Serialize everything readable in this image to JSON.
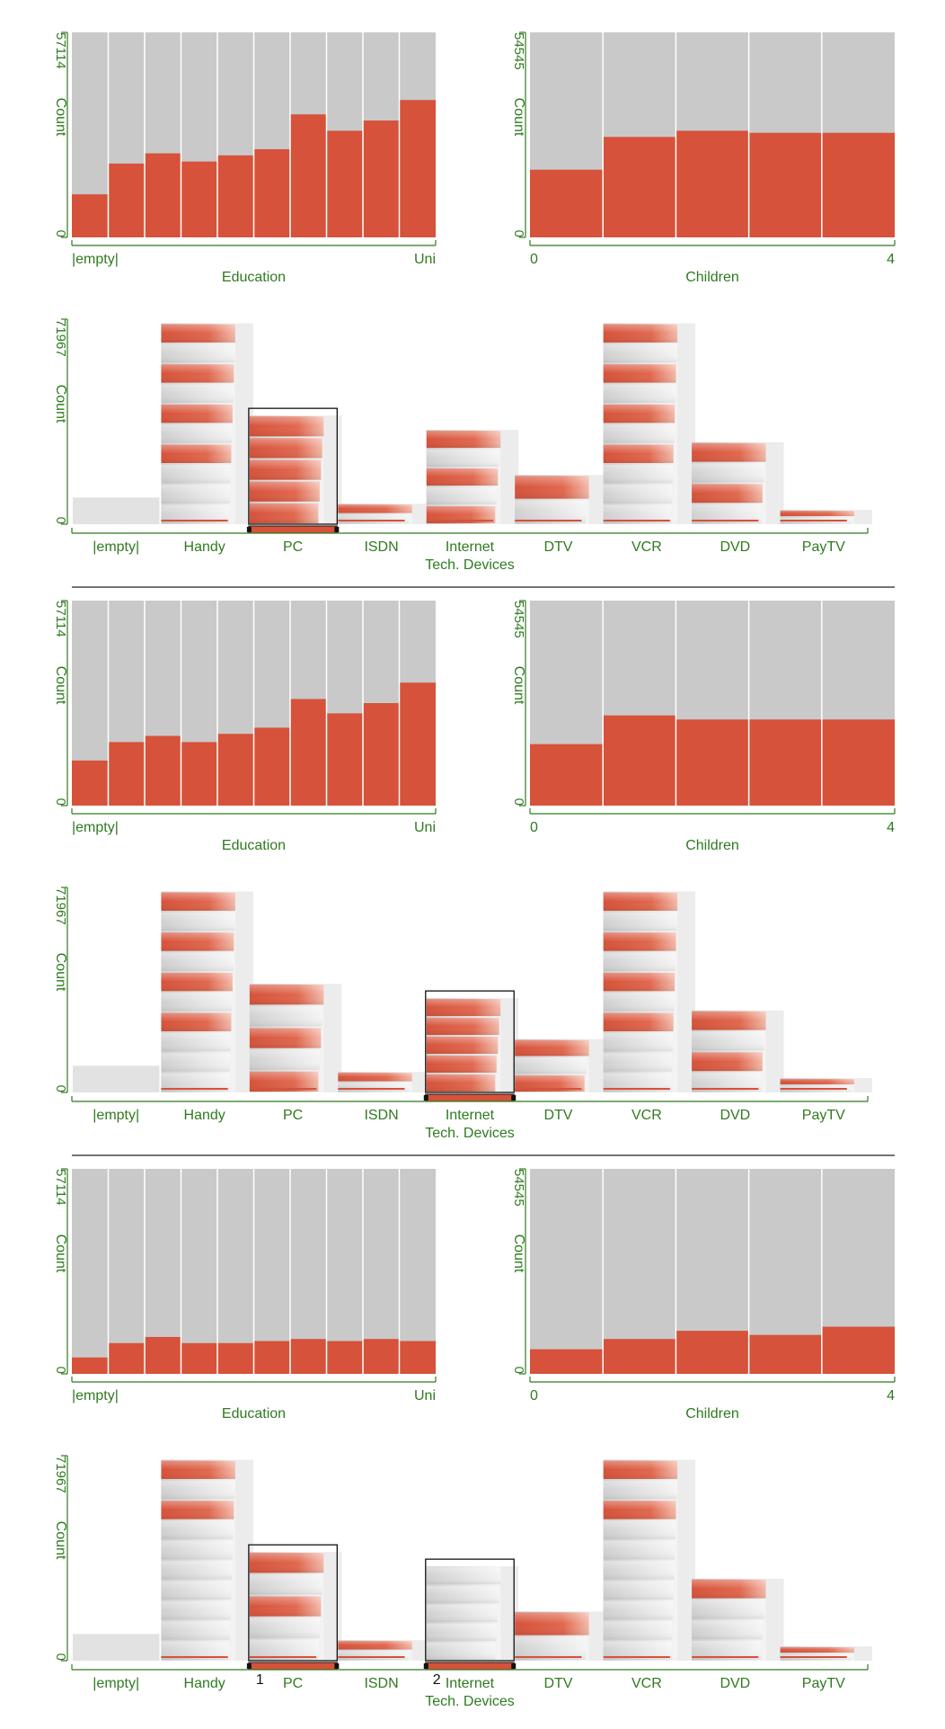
{
  "colors": {
    "selected": "#d6523a",
    "unselected": "#c9c9c9",
    "axis": "#2f7a1f",
    "divider": "#222222",
    "frame": "#111111"
  },
  "chart_data": [
    {
      "group": 1,
      "type": "bar",
      "title": "",
      "education": {
        "xlabel": "Education",
        "ylabel": "Count",
        "ymax_label": "57114",
        "y0_label": "0",
        "tick_first": "|empty|",
        "tick_last": "Uni",
        "selected_fraction": [
          0.21,
          0.36,
          0.41,
          0.37,
          0.4,
          0.43,
          0.6,
          0.52,
          0.57,
          0.67
        ]
      },
      "children": {
        "xlabel": "Children",
        "ylabel": "Count",
        "ymax_label": "54545",
        "y0_label": "0",
        "tick_first": "0",
        "tick_last": "4",
        "selected_fraction": [
          0.33,
          0.49,
          0.52,
          0.51,
          0.51
        ]
      },
      "tech": {
        "xlabel": "Tech. Devices",
        "ylabel": "Count",
        "ymax_label": "71967",
        "y0_label": "0",
        "categories": [
          "|empty|",
          "Handy",
          "PC",
          "ISDN",
          "Internet",
          "DTV",
          "VCR",
          "DVD",
          "PayTV"
        ],
        "height_fraction": [
          0.13,
          0.98,
          0.53,
          0.1,
          0.46,
          0.24,
          0.98,
          0.4,
          0.07
        ],
        "selected_share": [
          0.0,
          0.4,
          1.0,
          0.55,
          0.55,
          0.45,
          0.4,
          0.55,
          0.45
        ],
        "brushed": [
          2
        ]
      }
    },
    {
      "group": 2,
      "type": "bar",
      "title": "",
      "education": {
        "xlabel": "Education",
        "ylabel": "Count",
        "ymax_label": "57114",
        "y0_label": "0",
        "tick_first": "|empty|",
        "tick_last": "Uni",
        "selected_fraction": [
          0.22,
          0.31,
          0.34,
          0.31,
          0.35,
          0.38,
          0.52,
          0.45,
          0.5,
          0.6
        ]
      },
      "children": {
        "xlabel": "Children",
        "ylabel": "Count",
        "ymax_label": "54545",
        "y0_label": "0",
        "tick_first": "0",
        "tick_last": "4",
        "selected_fraction": [
          0.3,
          0.44,
          0.42,
          0.42,
          0.42
        ]
      },
      "tech": {
        "xlabel": "Tech. Devices",
        "ylabel": "Count",
        "ymax_label": "71967",
        "y0_label": "0",
        "categories": [
          "|empty|",
          "Handy",
          "PC",
          "ISDN",
          "Internet",
          "DTV",
          "VCR",
          "DVD",
          "PayTV"
        ],
        "height_fraction": [
          0.13,
          0.98,
          0.53,
          0.1,
          0.46,
          0.26,
          0.98,
          0.4,
          0.07
        ],
        "selected_share": [
          0.0,
          0.4,
          0.55,
          0.5,
          1.0,
          0.45,
          0.4,
          0.55,
          0.45
        ],
        "brushed": [
          4
        ]
      }
    },
    {
      "group": 3,
      "type": "bar",
      "title": "",
      "education": {
        "xlabel": "Education",
        "ylabel": "Count",
        "ymax_label": "57114",
        "y0_label": "0",
        "tick_first": "|empty|",
        "tick_last": "Uni",
        "selected_fraction": [
          0.08,
          0.15,
          0.18,
          0.15,
          0.15,
          0.16,
          0.17,
          0.16,
          0.17,
          0.16
        ]
      },
      "children": {
        "xlabel": "Children",
        "ylabel": "Count",
        "ymax_label": "54545",
        "y0_label": "0",
        "tick_first": "0",
        "tick_last": "4",
        "selected_fraction": [
          0.12,
          0.17,
          0.21,
          0.19,
          0.23
        ]
      },
      "tech": {
        "xlabel": "Tech. Devices",
        "ylabel": "Count",
        "ymax_label": "71967",
        "y0_label": "0",
        "categories": [
          "|empty|",
          "Handy",
          "PC",
          "ISDN",
          "Internet",
          "DTV",
          "VCR",
          "DVD",
          "PayTV"
        ],
        "height_fraction": [
          0.13,
          0.98,
          0.53,
          0.1,
          0.46,
          0.24,
          0.98,
          0.4,
          0.07
        ],
        "selected_share": [
          0.0,
          0.12,
          0.25,
          0.05,
          0.0,
          0.2,
          0.12,
          0.15,
          0.1
        ],
        "brushed": [
          2,
          4
        ],
        "brush_labels": [
          "1",
          "2"
        ]
      }
    }
  ]
}
